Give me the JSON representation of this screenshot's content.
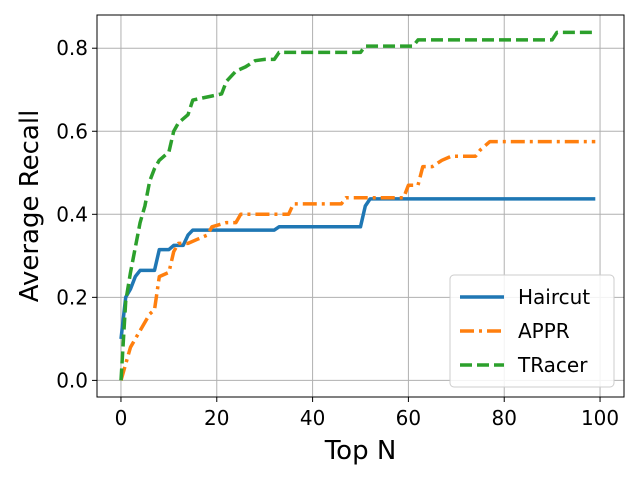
{
  "chart_data": {
    "type": "line",
    "title": "",
    "xlabel": "Top N",
    "ylabel": "Average Recall",
    "xlim": [
      -5,
      105
    ],
    "ylim": [
      -0.04,
      0.88
    ],
    "xticks": [
      0,
      20,
      40,
      60,
      80,
      100
    ],
    "xtick_labels": [
      "0",
      "20",
      "40",
      "60",
      "80",
      "100"
    ],
    "yticks": [
      0.0,
      0.2,
      0.4,
      0.6,
      0.8
    ],
    "ytick_labels": [
      "0.0",
      "0.2",
      "0.4",
      "0.6",
      "0.8"
    ],
    "grid": true,
    "legend_position": "bottom-right",
    "series": [
      {
        "name": "Haircut",
        "color": "#1f77b4",
        "dash": "solid",
        "points": [
          [
            0,
            0.1
          ],
          [
            1,
            0.2
          ],
          [
            2,
            0.22
          ],
          [
            3,
            0.25
          ],
          [
            4,
            0.265
          ],
          [
            7,
            0.265
          ],
          [
            8,
            0.315
          ],
          [
            10,
            0.315
          ],
          [
            11,
            0.325
          ],
          [
            13,
            0.325
          ],
          [
            14,
            0.35
          ],
          [
            15,
            0.362
          ],
          [
            20,
            0.362
          ],
          [
            32,
            0.362
          ],
          [
            33,
            0.37
          ],
          [
            50,
            0.37
          ],
          [
            51,
            0.42
          ],
          [
            52,
            0.437
          ],
          [
            60,
            0.437
          ],
          [
            99,
            0.437
          ]
        ]
      },
      {
        "name": "APPR",
        "color": "#ff7f0e",
        "dash": "dashdot",
        "points": [
          [
            0,
            0.0
          ],
          [
            2,
            0.08
          ],
          [
            4,
            0.12
          ],
          [
            6,
            0.16
          ],
          [
            7,
            0.17
          ],
          [
            8,
            0.25
          ],
          [
            10,
            0.26
          ],
          [
            11,
            0.31
          ],
          [
            12,
            0.33
          ],
          [
            14,
            0.33
          ],
          [
            16,
            0.34
          ],
          [
            18,
            0.35
          ],
          [
            19,
            0.37
          ],
          [
            22,
            0.38
          ],
          [
            24,
            0.38
          ],
          [
            25,
            0.4
          ],
          [
            35,
            0.4
          ],
          [
            36,
            0.425
          ],
          [
            46,
            0.425
          ],
          [
            47,
            0.44
          ],
          [
            59,
            0.44
          ],
          [
            60,
            0.47
          ],
          [
            62,
            0.47
          ],
          [
            63,
            0.515
          ],
          [
            65,
            0.515
          ],
          [
            67,
            0.53
          ],
          [
            69,
            0.54
          ],
          [
            74,
            0.54
          ],
          [
            75,
            0.555
          ],
          [
            77,
            0.575
          ],
          [
            99,
            0.575
          ]
        ]
      },
      {
        "name": "TRacer",
        "color": "#2ca02c",
        "dash": "dashed",
        "points": [
          [
            0,
            0.0
          ],
          [
            1,
            0.19
          ],
          [
            2,
            0.26
          ],
          [
            3,
            0.32
          ],
          [
            4,
            0.38
          ],
          [
            5,
            0.42
          ],
          [
            6,
            0.48
          ],
          [
            7,
            0.51
          ],
          [
            8,
            0.53
          ],
          [
            10,
            0.55
          ],
          [
            11,
            0.6
          ],
          [
            12,
            0.62
          ],
          [
            14,
            0.64
          ],
          [
            15,
            0.675
          ],
          [
            17,
            0.68
          ],
          [
            19,
            0.685
          ],
          [
            21,
            0.69
          ],
          [
            22,
            0.72
          ],
          [
            24,
            0.745
          ],
          [
            26,
            0.755
          ],
          [
            28,
            0.77
          ],
          [
            30,
            0.773
          ],
          [
            32,
            0.773
          ],
          [
            33,
            0.79
          ],
          [
            50,
            0.79
          ],
          [
            51,
            0.805
          ],
          [
            61,
            0.805
          ],
          [
            62,
            0.82
          ],
          [
            90,
            0.82
          ],
          [
            91,
            0.838
          ],
          [
            99,
            0.838
          ]
        ]
      }
    ]
  }
}
